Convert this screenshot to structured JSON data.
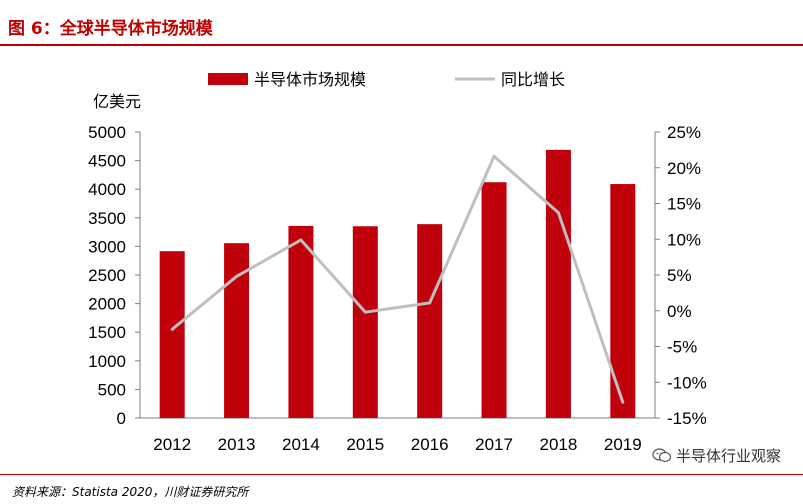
{
  "figure": {
    "title": "图 6：全球半导体市场规模",
    "source": "资料来源：Statista 2020，川财证券研究所",
    "watermark": "半导体行业观察"
  },
  "colors": {
    "accent": "#c00000",
    "bar": "#c0000a",
    "line": "#bfbfbf",
    "axis": "#7f7f7f"
  },
  "chart_data": {
    "type": "bar",
    "categories": [
      "2012",
      "2013",
      "2014",
      "2015",
      "2016",
      "2017",
      "2018",
      "2019"
    ],
    "series": [
      {
        "name": "半导体市场规模",
        "type": "bar",
        "axis": "left",
        "values": [
          2916,
          3056,
          3358,
          3352,
          3389,
          4122,
          4688,
          4090
        ]
      },
      {
        "name": "同比增长",
        "type": "line",
        "axis": "right",
        "values": [
          -2.6,
          4.8,
          9.9,
          -0.2,
          1.1,
          21.6,
          13.7,
          -12.8
        ]
      }
    ],
    "ylabel": "亿美元",
    "ylim": [
      0,
      5000
    ],
    "y_ticks": [
      "0",
      "500",
      "1000",
      "1500",
      "2000",
      "2500",
      "3000",
      "3500",
      "4000",
      "4500",
      "5000"
    ],
    "y2lim": [
      -15,
      25
    ],
    "y2_ticks": [
      "-15%",
      "-10%",
      "-5%",
      "0%",
      "5%",
      "10%",
      "15%",
      "20%",
      "25%"
    ],
    "legend": [
      "半导体市场规模",
      "同比增长"
    ],
    "legend_position": "top",
    "grid": false
  }
}
